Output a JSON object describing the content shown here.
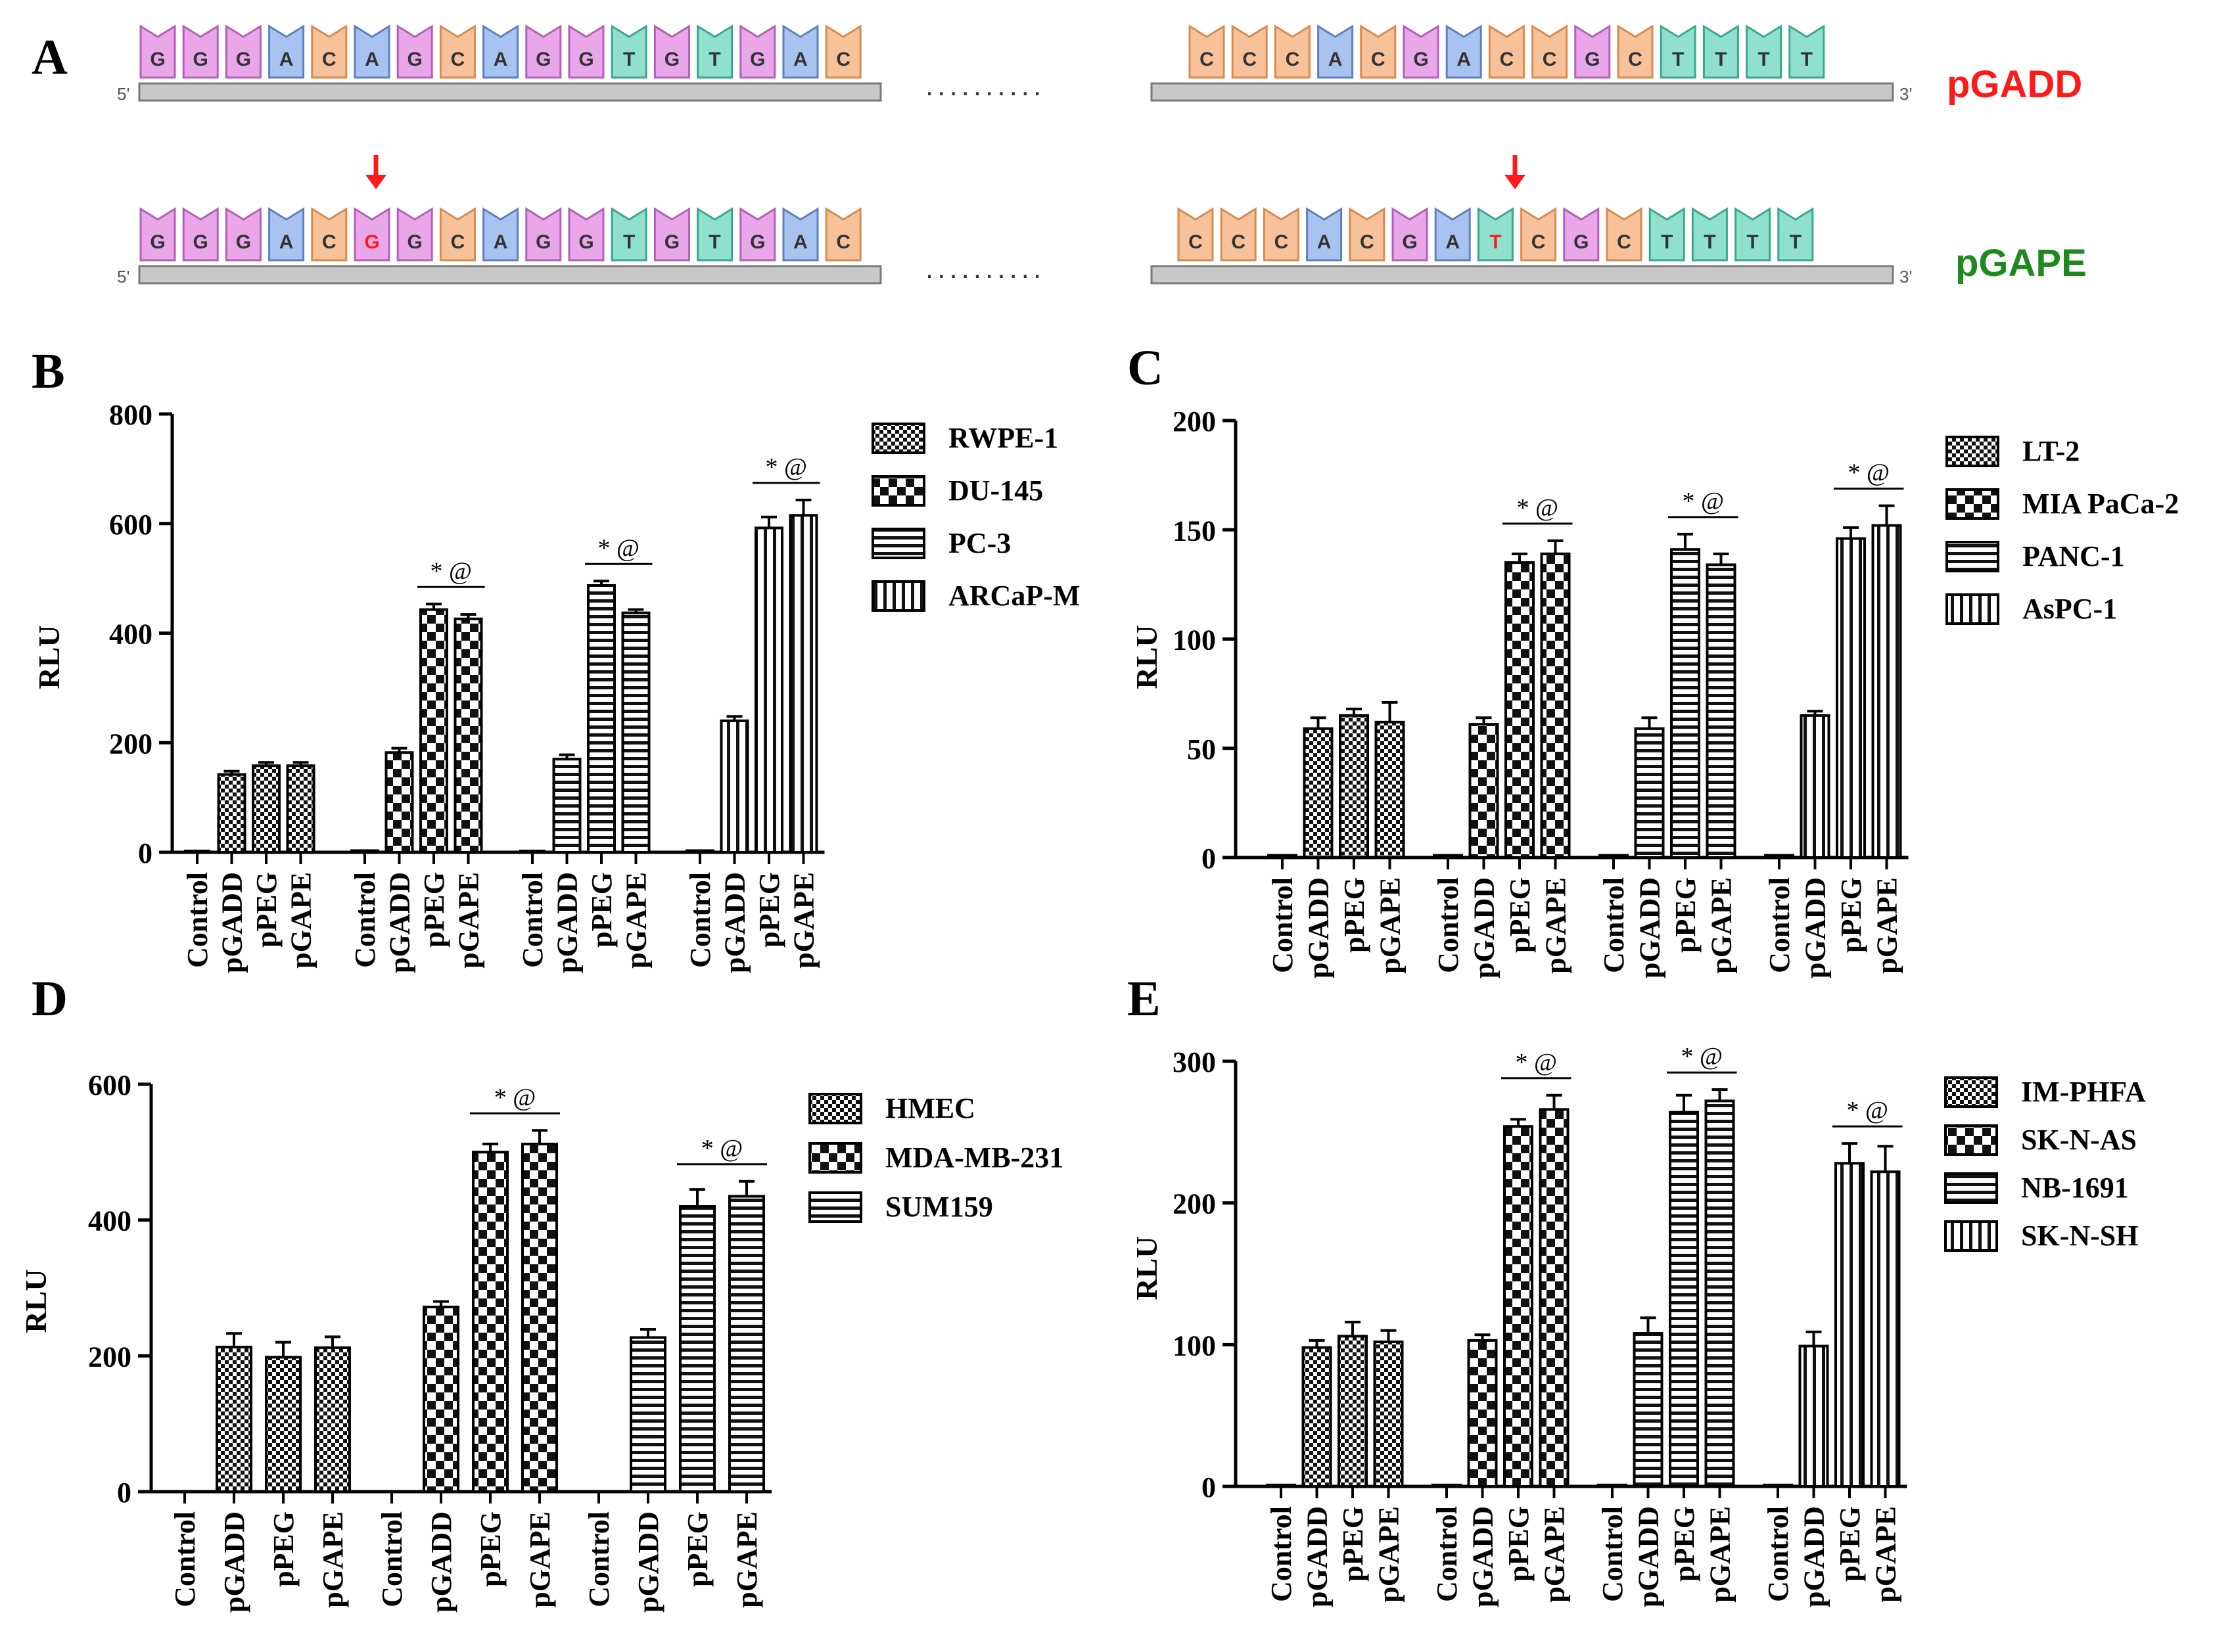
{
  "panel_a": {
    "panel_label": "A",
    "five_prime": "5'",
    "three_prime": "3'",
    "ellipsis": "..........",
    "top_row": {
      "name": "pGADD",
      "color": "#ff1a1a",
      "left_seq": [
        "G",
        "G",
        "G",
        "A",
        "C",
        "A",
        "G",
        "C",
        "A",
        "G",
        "G",
        "T",
        "G",
        "T",
        "G",
        "A",
        "C"
      ],
      "right_seq": [
        "C",
        "C",
        "C",
        "A",
        "C",
        "G",
        "A",
        "C",
        "C",
        "G",
        "C",
        "T",
        "T",
        "T",
        "T"
      ]
    },
    "bottom_row": {
      "name": "pGAPE",
      "color": "#1e8a1e",
      "left_seq": [
        "G",
        "G",
        "G",
        "A",
        "C",
        "G",
        "G",
        "C",
        "A",
        "G",
        "G",
        "T",
        "G",
        "T",
        "G",
        "A",
        "C"
      ],
      "right_seq": [
        "C",
        "C",
        "C",
        "A",
        "C",
        "G",
        "A",
        "T",
        "C",
        "G",
        "C",
        "T",
        "T",
        "T",
        "T"
      ],
      "mutation_index_left": 5,
      "mutation_index_right": 7
    },
    "base_colors": {
      "G": "#e9a7ea",
      "A": "#a9c3f0",
      "C": "#f7c29a",
      "T": "#8fe0cc"
    },
    "base_strokes": {
      "G": "#b45fb8",
      "A": "#5f7fc0",
      "C": "#d98a4c",
      "T": "#3aa88e"
    },
    "mutation_color": "#ff1a1a"
  },
  "chart_data": [
    {
      "panel_label": "B",
      "type": "bar",
      "ylabel": "RLU",
      "ylim": [
        0,
        800
      ],
      "yticks": [
        "0",
        "200",
        "400",
        "600",
        "800"
      ],
      "ytick_values": [
        0,
        200,
        400,
        600,
        800
      ],
      "categories": [
        "Control",
        "pGADD",
        "pPEG",
        "pGAPE"
      ],
      "sig_label": "* @",
      "series": [
        {
          "name": "RWPE-1",
          "pattern": "checker-fine",
          "values": [
            2,
            142,
            158,
            158
          ],
          "errors": [
            0,
            6,
            6,
            6
          ],
          "sig": false
        },
        {
          "name": "DU-145",
          "pattern": "checker-coarse",
          "values": [
            3,
            182,
            443,
            426
          ],
          "errors": [
            0,
            8,
            10,
            8
          ],
          "sig": true
        },
        {
          "name": "PC-3",
          "pattern": "hstripe",
          "values": [
            2,
            170,
            487,
            437
          ],
          "errors": [
            0,
            8,
            8,
            6
          ],
          "sig": true
        },
        {
          "name": "ARCaP-M",
          "pattern": "vstripe",
          "values": [
            3,
            240,
            592,
            615
          ],
          "errors": [
            0,
            8,
            20,
            28
          ],
          "sig": true
        }
      ]
    },
    {
      "panel_label": "C",
      "type": "bar",
      "ylabel": "RLU",
      "ylim": [
        0,
        200
      ],
      "yticks": [
        "0",
        "50",
        "100",
        "150",
        "200"
      ],
      "ytick_values": [
        0,
        50,
        100,
        150,
        200
      ],
      "categories": [
        "Control",
        "pGADD",
        "pPEG",
        "pGAPE"
      ],
      "sig_label": "* @",
      "series": [
        {
          "name": "LT-2",
          "pattern": "checker-fine",
          "values": [
            1,
            59,
            65,
            62
          ],
          "errors": [
            0,
            5,
            3,
            9
          ],
          "sig": false
        },
        {
          "name": "MIA PaCa-2",
          "pattern": "checker-coarse",
          "values": [
            1,
            61,
            135,
            139
          ],
          "errors": [
            0,
            3,
            4,
            6
          ],
          "sig": true
        },
        {
          "name": "PANC-1",
          "pattern": "hstripe",
          "values": [
            1,
            59,
            141,
            134
          ],
          "errors": [
            0,
            5,
            7,
            5
          ],
          "sig": true
        },
        {
          "name": "AsPC-1",
          "pattern": "vstripe",
          "values": [
            1,
            65,
            146,
            152
          ],
          "errors": [
            0,
            2,
            5,
            9
          ],
          "sig": true
        }
      ]
    },
    {
      "panel_label": "D",
      "type": "bar",
      "ylabel": "RLU",
      "ylim": [
        0,
        600
      ],
      "yticks": [
        "0",
        "200",
        "400",
        "600"
      ],
      "ytick_values": [
        0,
        200,
        400,
        600
      ],
      "categories": [
        "Control",
        "pGADD",
        "pPEG",
        "pGAPE"
      ],
      "sig_label": "* @",
      "series": [
        {
          "name": "HMEC",
          "pattern": "checker-fine",
          "values": [
            0,
            213,
            198,
            212
          ],
          "errors": [
            0,
            20,
            22,
            16
          ],
          "sig": false
        },
        {
          "name": "MDA-MB-231",
          "pattern": "checker-coarse",
          "values": [
            0,
            272,
            500,
            512
          ],
          "errors": [
            0,
            8,
            12,
            20
          ],
          "sig": true
        },
        {
          "name": "SUM159",
          "pattern": "hstripe",
          "values": [
            0,
            227,
            420,
            435
          ],
          "errors": [
            0,
            12,
            25,
            22
          ],
          "sig": true
        }
      ]
    },
    {
      "panel_label": "E",
      "type": "bar",
      "ylabel": "RLU",
      "ylim": [
        0,
        300
      ],
      "yticks": [
        "0",
        "100",
        "200",
        "300"
      ],
      "ytick_values": [
        0,
        100,
        200,
        300
      ],
      "categories": [
        "Control",
        "pGADD",
        "pPEG",
        "pGAPE"
      ],
      "sig_label": "* @",
      "series": [
        {
          "name": "IM-PHFA",
          "pattern": "checker-fine",
          "values": [
            1,
            98,
            106,
            102
          ],
          "errors": [
            0,
            5,
            10,
            8
          ],
          "sig": false
        },
        {
          "name": "SK-N-AS",
          "pattern": "checker-coarse",
          "values": [
            1,
            103,
            254,
            266
          ],
          "errors": [
            0,
            4,
            5,
            10
          ],
          "sig": true
        },
        {
          "name": "NB-1691",
          "pattern": "hstripe",
          "values": [
            1,
            108,
            264,
            272
          ],
          "errors": [
            0,
            11,
            12,
            8
          ],
          "sig": true
        },
        {
          "name": "SK-N-SH",
          "pattern": "vstripe",
          "values": [
            1,
            99,
            228,
            222
          ],
          "errors": [
            0,
            10,
            14,
            18
          ],
          "sig": true
        }
      ]
    }
  ]
}
